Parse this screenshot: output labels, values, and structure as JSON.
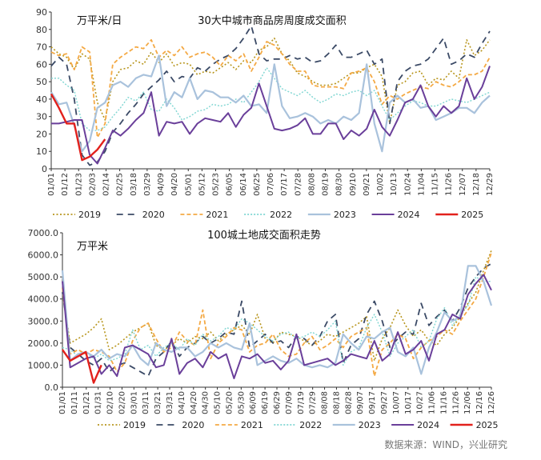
{
  "source": "数据来源：WIND，兴业研究",
  "colors": {
    "2019": "#b8961e",
    "2020": "#3b4a66",
    "2021": "#f4a944",
    "2022": "#7fd6d2",
    "2023": "#a9c2dc",
    "2024": "#6a3f9a",
    "2025": "#e2211c"
  },
  "chart_data": [
    {
      "type": "line",
      "title": "30大中城市商品房周度成交面积",
      "unit": "万平米/日",
      "ylim": [
        0,
        90
      ],
      "yticks": [
        0,
        10,
        20,
        30,
        40,
        50,
        60,
        70,
        80,
        90
      ],
      "xticks": [
        "01/01",
        "01/12",
        "01/23",
        "02/03",
        "02/14",
        "02/25",
        "03/18",
        "03/29",
        "04/09",
        "04/20",
        "05/01",
        "05/12",
        "05/23",
        "06/05",
        "06/14",
        "06/25",
        "07/06",
        "07/17",
        "07/28",
        "08/08",
        "08/19",
        "08/30",
        "09/10",
        "09/21",
        "10/02",
        "10/13",
        "10/24",
        "11/04",
        "11/15",
        "11/26",
        "12/07",
        "12/18",
        "12/29"
      ],
      "legend": [
        "2019",
        "2020",
        "2021",
        "2022",
        "2023",
        "2024",
        "2025"
      ],
      "series": [
        {
          "name": "2019",
          "values": [
            70,
            66,
            64,
            57,
            66,
            63,
            38,
            28,
            50,
            57,
            58,
            62,
            60,
            67,
            61,
            66,
            59,
            61,
            60,
            54,
            56,
            55,
            58,
            61,
            57,
            62,
            61,
            68,
            70,
            75,
            66,
            62,
            55,
            53,
            50,
            48,
            48,
            49,
            52,
            55,
            55,
            58,
            60,
            53,
            26,
            48,
            50,
            55,
            56,
            48,
            52,
            51,
            56,
            52,
            74,
            65,
            68,
            74
          ]
        },
        {
          "name": "2020",
          "values": [
            59,
            64,
            60,
            40,
            8,
            2,
            4,
            10,
            21,
            26,
            32,
            37,
            43,
            47,
            51,
            56,
            50,
            53,
            52,
            58,
            56,
            60,
            63,
            65,
            69,
            75,
            82,
            66,
            62,
            63,
            63,
            65,
            63,
            64,
            61,
            62,
            66,
            71,
            64,
            64,
            66,
            68,
            60,
            63,
            26,
            50,
            56,
            59,
            60,
            63,
            69,
            75,
            60,
            62,
            66,
            64,
            72,
            79
          ]
        },
        {
          "name": "2021",
          "values": [
            67,
            65,
            66,
            57,
            70,
            67,
            18,
            26,
            60,
            64,
            67,
            70,
            69,
            74,
            64,
            68,
            65,
            70,
            64,
            66,
            67,
            64,
            59,
            65,
            62,
            66,
            56,
            64,
            73,
            71,
            66,
            60,
            56,
            56,
            48,
            47,
            47,
            47,
            46,
            55,
            56,
            58,
            50,
            37,
            42,
            40,
            43,
            45,
            47,
            46,
            50,
            48,
            47,
            50,
            54,
            54,
            56,
            64
          ]
        },
        {
          "name": "2022",
          "values": [
            52,
            52,
            48,
            45,
            26,
            22,
            22,
            24,
            30,
            35,
            41,
            39,
            44,
            34,
            33,
            40,
            35,
            28,
            30,
            33,
            34,
            37,
            36,
            37,
            40,
            38,
            44,
            50,
            58,
            52,
            46,
            44,
            42,
            45,
            41,
            38,
            40,
            43,
            42,
            44,
            45,
            42,
            45,
            36,
            28,
            32,
            36,
            39,
            38,
            36,
            36,
            38,
            40,
            39,
            38,
            40,
            42,
            44
          ]
        },
        {
          "name": "2023",
          "values": [
            44,
            37,
            38,
            25,
            10,
            16,
            35,
            38,
            48,
            50,
            47,
            52,
            54,
            53,
            65,
            36,
            44,
            41,
            52,
            40,
            45,
            44,
            41,
            41,
            38,
            42,
            36,
            37,
            32,
            60,
            36,
            29,
            30,
            32,
            30,
            26,
            28,
            26,
            30,
            28,
            32,
            60,
            26,
            10,
            38,
            42,
            38,
            40,
            35,
            36,
            28,
            30,
            32,
            35,
            35,
            32,
            38,
            42
          ]
        },
        {
          "name": "2024",
          "values": [
            26,
            26,
            27,
            28,
            28,
            8,
            3,
            12,
            22,
            19,
            23,
            28,
            32,
            44,
            19,
            27,
            26,
            27,
            20,
            26,
            29,
            28,
            27,
            32,
            24,
            31,
            35,
            49,
            36,
            23,
            22,
            23,
            25,
            29,
            20,
            20,
            26,
            26,
            17,
            22,
            19,
            23,
            34,
            24,
            19,
            28,
            38,
            40,
            48,
            36,
            30,
            36,
            32,
            36,
            52,
            40,
            47,
            59
          ]
        },
        {
          "name": "2025",
          "values": [
            43,
            35,
            26,
            26,
            5,
            7,
            11,
            17
          ]
        }
      ]
    },
    {
      "type": "line",
      "title": "100城土地成交面积走势",
      "unit": "万平米",
      "ylim": [
        0,
        7000
      ],
      "yticks": [
        "0.0",
        "1000.0",
        "2000.0",
        "3000.0",
        "4000.0",
        "5000.0",
        "6000.0",
        "7000.0"
      ],
      "ytickValues": [
        0,
        1000,
        2000,
        3000,
        4000,
        5000,
        6000,
        7000
      ],
      "xticks": [
        "01/01",
        "01/11",
        "01/21",
        "01/31",
        "02/10",
        "02/20",
        "03/01",
        "03/11",
        "03/21",
        "03/31",
        "04/10",
        "04/20",
        "04/30",
        "05/10",
        "05/20",
        "05/30",
        "06/09",
        "06/19",
        "06/29",
        "07/09",
        "07/19",
        "07/29",
        "08/08",
        "08/18",
        "08/28",
        "09/07",
        "09/17",
        "09/27",
        "10/07",
        "10/17",
        "10/27",
        "11/06",
        "11/16",
        "11/26",
        "12/06",
        "12/16",
        "12/26"
      ],
      "legend": [
        "2019",
        "2020",
        "2021",
        "2022",
        "2023",
        "2024",
        "2025"
      ],
      "series": [
        {
          "name": "2019",
          "values": [
            4300,
            2000,
            2200,
            2400,
            2700,
            3100,
            1700,
            1900,
            2200,
            2500,
            2700,
            2900,
            1900,
            1700,
            1900,
            2200,
            2000,
            2300,
            2200,
            2500,
            2100,
            2400,
            2600,
            2800,
            2400,
            3300,
            2200,
            2000,
            2500,
            2400,
            2300,
            2100,
            1900,
            2100,
            2400,
            2300,
            2500,
            2700,
            2900,
            3200,
            1200,
            2200,
            2700,
            3500,
            2800,
            2300,
            2600,
            2100,
            1900,
            2400,
            2700,
            3200,
            3800,
            4300,
            5300,
            6200
          ]
        },
        {
          "name": "2020",
          "values": [
            4300,
            1800,
            1500,
            1200,
            1000,
            1300,
            700,
            1000,
            1100,
            900,
            700,
            500,
            1300,
            1600,
            2100,
            1400,
            1800,
            2000,
            2300,
            2000,
            2200,
            2500,
            2400,
            3900,
            1800,
            2100,
            2400,
            2000,
            2100,
            1800,
            2300,
            2200,
            1900,
            2300,
            3000,
            3300,
            1100,
            1900,
            2200,
            3300,
            3900,
            3000,
            1800,
            2200,
            2500,
            2400,
            3800,
            2800,
            3200,
            3500,
            3000,
            3600,
            4500,
            5000,
            5400,
            5600
          ]
        },
        {
          "name": "2021",
          "values": [
            4500,
            1500,
            1700,
            1500,
            1700,
            1600,
            1400,
            700,
            1100,
            2100,
            2700,
            2900,
            2200,
            1600,
            1800,
            2500,
            2100,
            1900,
            3500,
            1300,
            2000,
            2300,
            2700,
            2600,
            1600,
            1900,
            2000,
            2400,
            1700,
            1400,
            1500,
            2000,
            2300,
            1700,
            1900,
            2200,
            1800,
            2300,
            2500,
            2700,
            500,
            1700,
            2000,
            2400,
            2200,
            1300,
            1800,
            2100,
            2300,
            2600,
            2400,
            3000,
            3500,
            4000,
            5000,
            6100
          ]
        },
        {
          "name": "2022",
          "values": [
            1800,
            1700,
            1400,
            1600,
            1300,
            1500,
            1200,
            1300,
            1500,
            2600,
            1700,
            1900,
            1400,
            1800,
            2000,
            1700,
            2200,
            1900,
            2400,
            2100,
            2300,
            2700,
            2600,
            3100,
            2900,
            2600,
            2300,
            2100,
            2400,
            2500,
            2200,
            2300,
            2500,
            2300,
            2600,
            3000,
            1000,
            1600,
            1800,
            2700,
            3300,
            2500,
            1400,
            2000,
            2300,
            2600,
            1800,
            2100,
            3100,
            3600,
            2800,
            3300,
            3700,
            5000,
            4800,
            4800
          ]
        },
        {
          "name": "2023",
          "values": [
            5300,
            1200,
            1500,
            1600,
            1400,
            1700,
            1300,
            1500,
            1400,
            1900,
            1300,
            1000,
            2000,
            1700,
            1600,
            1800,
            1800,
            1400,
            1600,
            2000,
            1800,
            2000,
            1800,
            1700,
            2900,
            1000,
            1200,
            1400,
            1200,
            1100,
            1300,
            1000,
            900,
            1000,
            900,
            1100,
            2400,
            2000,
            1700,
            2300,
            2200,
            2500,
            2700,
            1600,
            1400,
            1800,
            600,
            1800,
            2500,
            3400,
            3000,
            3200,
            5500,
            5500,
            4800,
            3700
          ]
        },
        {
          "name": "2024",
          "values": [
            4800,
            900,
            1100,
            1300,
            1400,
            600,
            1000,
            500,
            1800,
            1900,
            1700,
            1500,
            900,
            1000,
            2200,
            600,
            1100,
            1300,
            900,
            1600,
            1300,
            1500,
            400,
            1400,
            1300,
            1500,
            1100,
            1200,
            800,
            1200,
            2400,
            1000,
            1100,
            1200,
            1300,
            1000,
            1200,
            1500,
            1400,
            1300,
            2100,
            1200,
            1500,
            2500,
            1500,
            1700,
            2100,
            1200,
            2400,
            2600,
            3300,
            3100,
            4200,
            4700,
            5100,
            4400
          ]
        },
        {
          "name": "2025",
          "values": [
            1700,
            1200,
            1400,
            1600,
            200,
            1000
          ]
        }
      ]
    }
  ]
}
